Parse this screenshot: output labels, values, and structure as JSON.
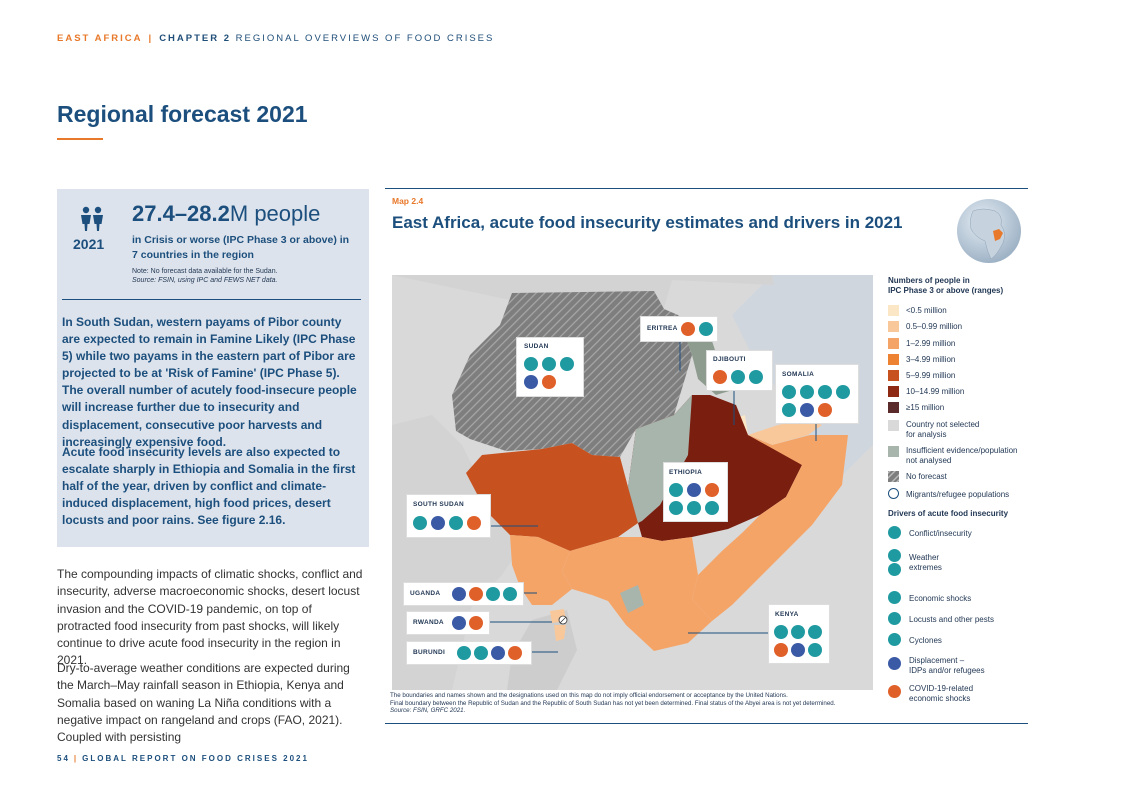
{
  "header": {
    "section": "EAST AFRICA",
    "separator": "|",
    "chapter": "CHAPTER 2",
    "chapter_title": "REGIONAL OVERVIEWS OF FOOD CRISES"
  },
  "page_title": "Regional forecast 2021",
  "key_box": {
    "year": "2021",
    "figure": "27.4–28.2",
    "figure_unit": "M people",
    "sub_line1": "in Crisis or worse (IPC Phase 3 or above) in",
    "sub_line2": "7 countries in the region",
    "note_line1": "Note: No forecast data available for the Sudan.",
    "note_line2": "Source: FSIN, using IPC and FEWS NET data.",
    "paragraph1": "In South Sudan, western payams of Pibor county are expected to remain in Famine Likely (IPC Phase 5) while two payams in the eastern part of Pibor are projected to be at 'Risk of Famine' (IPC Phase 5). The overall number of acutely food-insecure people will increase further due to insecurity and displacement, consecutive poor harvests and increasingly expensive food.",
    "paragraph2": "Acute food insecurity levels are also expected to escalate sharply in Ethiopia and Somalia in the first half of the year, driven by conflict and climate-induced displacement, high food prices, desert locusts and poor rains. See figure 2.16."
  },
  "body": {
    "paragraph1": "The compounding impacts of climatic shocks, conflict and insecurity, adverse macroeconomic shocks, desert locust invasion and the COVID-19 pandemic, on top of protracted food insecurity from past shocks, will likely continue to drive acute food insecurity in the region in 2021.",
    "paragraph2": "Dry-to-average weather conditions are expected during the March–May rainfall season in Ethiopia, Kenya and Somalia based on waning La Niña conditions with a negative impact on rangeland and crops (FAO, 2021). Coupled with persisting"
  },
  "footer": {
    "page_number": "54",
    "separator": "|",
    "report": "GLOBAL REPORT ON FOOD CRISES 2021"
  },
  "map": {
    "label": "Map 2.4",
    "title": "East Africa, acute food insecurity estimates and drivers in 2021",
    "countries": [
      "SUDAN",
      "ERITREA",
      "DJIBOUTI",
      "SOMALIA",
      "ETHIOPIA",
      "SOUTH SUDAN",
      "UGANDA",
      "RWANDA",
      "BURUNDI",
      "KENYA"
    ],
    "disclaimer1": "The boundaries and names shown and the designations used on this map do not imply official endorsement or acceptance by the United Nations.",
    "disclaimer2": "Final boundary between the Republic of Sudan and the Republic of South Sudan has not yet been determined. Final status of the Abyei area is not yet determined.",
    "source": "Source: FSIN, GRFC 2021."
  },
  "legend": {
    "title_line1": "Numbers of people in",
    "title_line2": "IPC Phase 3 or above (ranges)",
    "ranges": [
      "<0.5 million",
      "0.5–0.99 million",
      "1–2.99 million",
      "3–4.99 million",
      "5–9.99 million",
      "10–14.99 million",
      "≥15 million"
    ],
    "range_colors": [
      "#fbe7c6",
      "#f8c89b",
      "#f5a468",
      "#ed8232",
      "#c8521f",
      "#8e2a14",
      "#5b2a2a"
    ],
    "not_selected_line1": "Country not selected",
    "not_selected_line2": "for analysis",
    "insufficient_line1": "Insufficient evidence/population",
    "insufficient_line2": "not analysed",
    "no_forecast": "No forecast",
    "migrants": "Migrants/refugee populations",
    "drivers_title": "Drivers of acute food insecurity",
    "drivers": {
      "conflict": "Conflict/insecurity",
      "weather1": "Weather",
      "weather2": "extremes",
      "economic": "Economic shocks",
      "locusts": "Locusts and other pests",
      "cyclones": "Cyclones",
      "displacement1": "Displacement –",
      "displacement2": "IDPs and/or refugees",
      "covid1": "COVID-19-related",
      "covid2": "economic shocks"
    }
  }
}
